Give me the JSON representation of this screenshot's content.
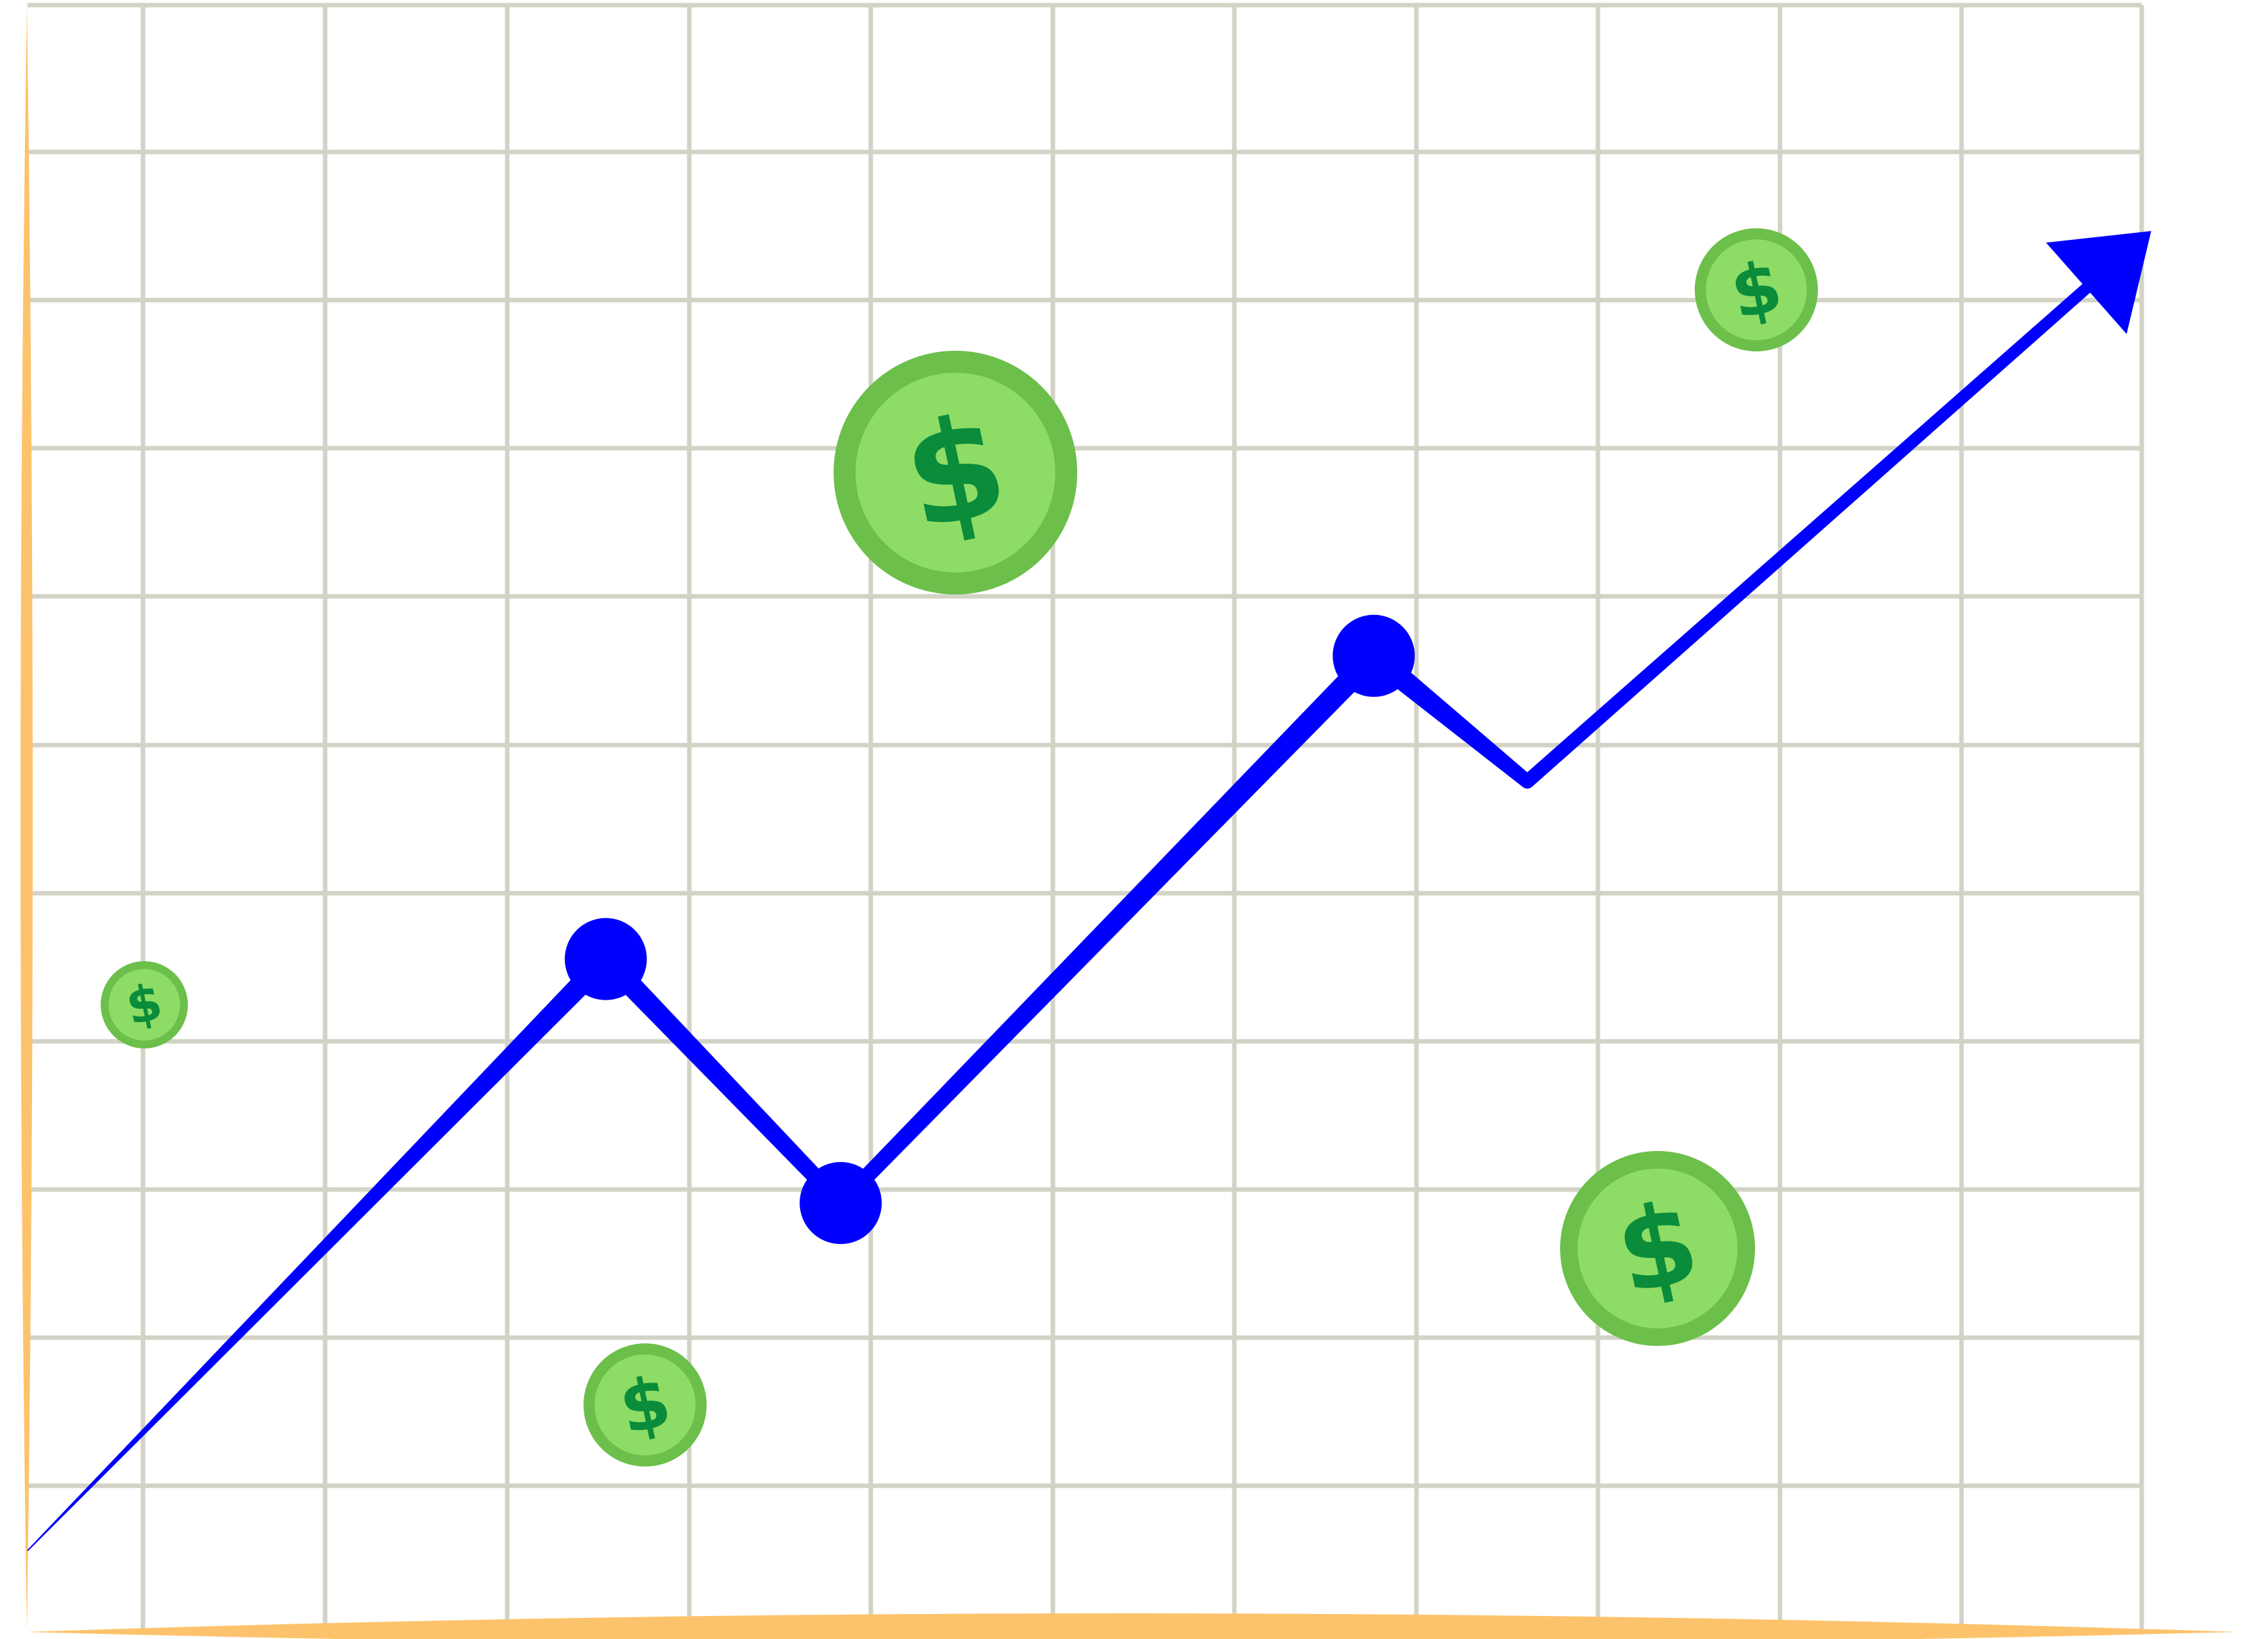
{
  "colors": {
    "background": "#ffffff",
    "grid": "#d2d3c6",
    "axis": "#fdc36c",
    "line": "#0000ff",
    "coin_outer": "#6cbf4a",
    "coin_inner": "#8ddc66",
    "coin_sign": "#0a8c3a"
  },
  "icons": {
    "coin": "dollar-coin-icon",
    "arrowhead": "arrowhead-icon"
  },
  "coin_symbol": "$",
  "chart_data": {
    "type": "line",
    "title": "",
    "xlabel": "",
    "ylabel": "",
    "grid": true,
    "arrow_at_end": true,
    "xlim": [
      0,
      11.7
    ],
    "ylim": [
      0,
      11
    ],
    "series": [
      {
        "x": [
          0,
          3.2,
          4.5,
          7.45,
          8.3,
          11.5
        ],
        "y": [
          0.55,
          4.55,
          2.9,
          6.6,
          5.75,
          9.2
        ],
        "markers": [
          false,
          true,
          true,
          true,
          false,
          false
        ]
      }
    ]
  }
}
